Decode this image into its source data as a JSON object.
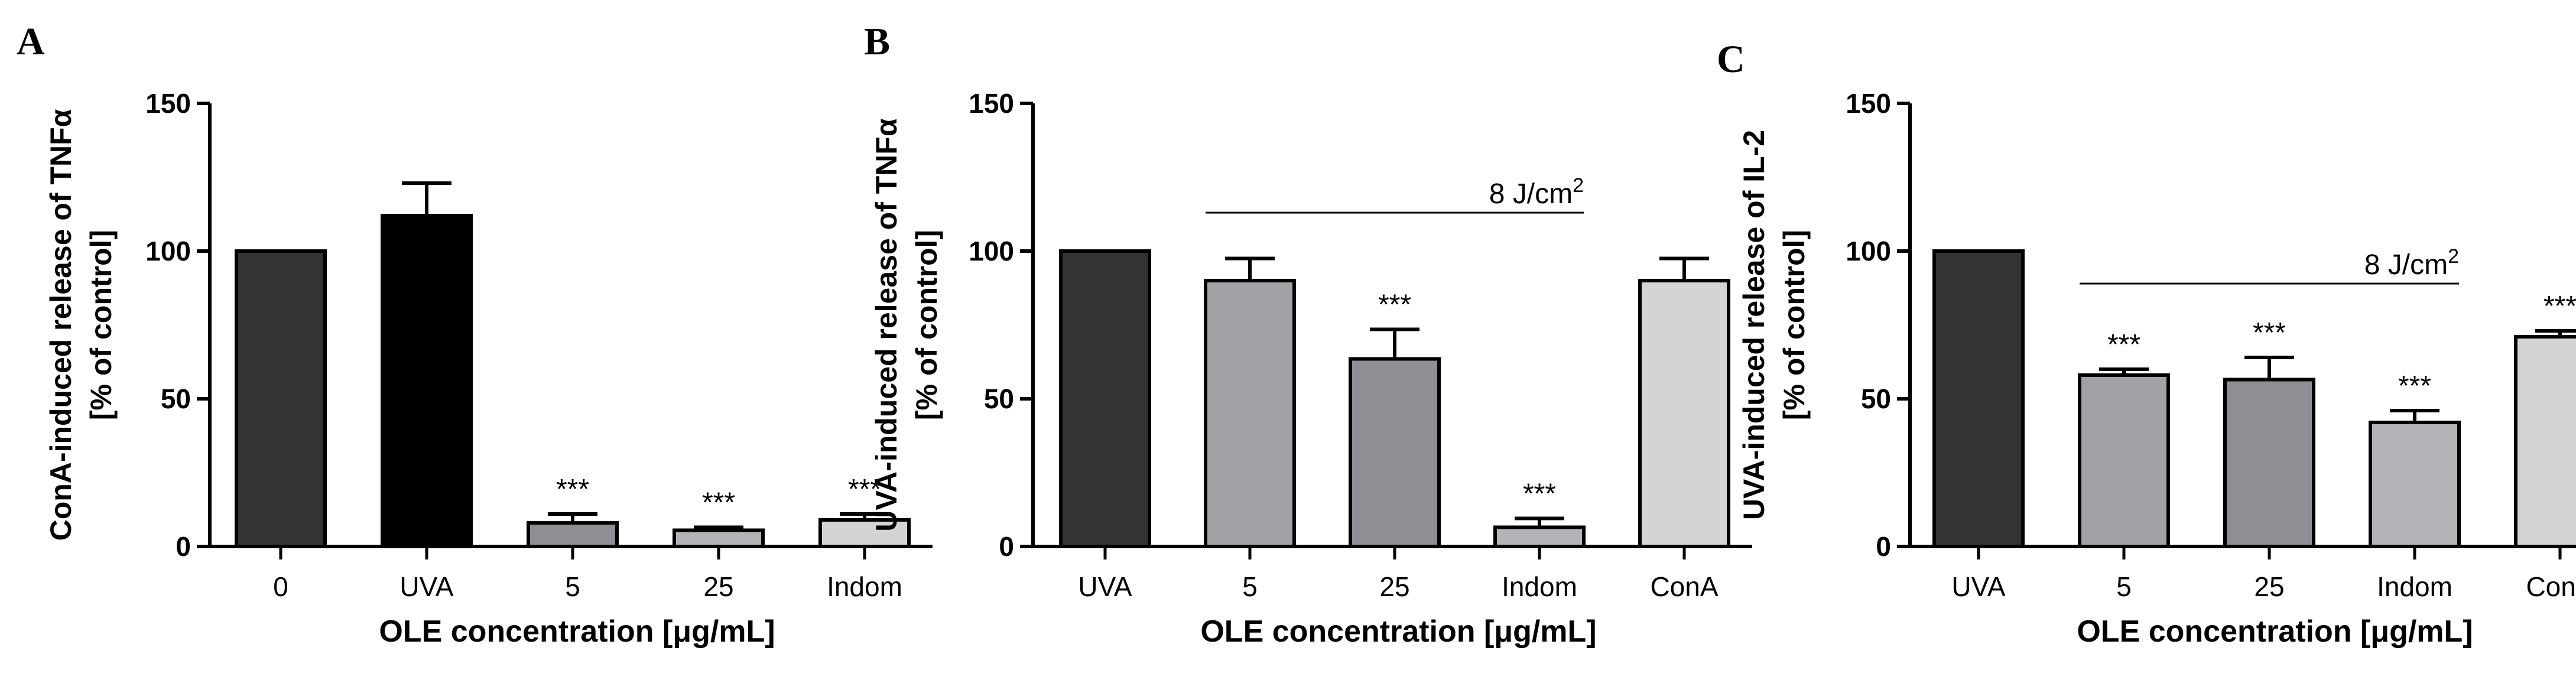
{
  "chart_data": [
    {
      "type": "bar",
      "panel": "A",
      "categories": [
        "0",
        "UVA",
        "5",
        "25",
        "Indom"
      ],
      "values": [
        100,
        112,
        8,
        5.5,
        9
      ],
      "errors": [
        0,
        11,
        3,
        1,
        2
      ],
      "colors": [
        "#333333",
        "#000000",
        "#8e8e94",
        "#b3b3b8",
        "#d4d4d4"
      ],
      "significance": [
        "",
        "",
        "***",
        "***",
        "***"
      ],
      "ylabel": [
        "ConA-induced release of TNFα",
        "[% of control]"
      ],
      "xlabel": "OLE concentration [μg/mL]",
      "ylim": [
        0,
        150
      ],
      "yticks": [
        0,
        50,
        100,
        150
      ],
      "ytick_labels": [
        "0",
        "50",
        "100",
        "150"
      ],
      "annotation": null
    },
    {
      "type": "bar",
      "panel": "B",
      "categories": [
        "UVA",
        "5",
        "25",
        "Indom",
        "ConA"
      ],
      "values": [
        100,
        90,
        63.5,
        6.5,
        90
      ],
      "errors": [
        0,
        7.5,
        10,
        3,
        7.5
      ],
      "colors": [
        "#333333",
        "#a1a1a6",
        "#8e8e94",
        "#b3b3b8",
        "#d4d4d4"
      ],
      "significance": [
        "",
        "",
        "***",
        "***",
        ""
      ],
      "ylabel": [
        "UVA-induced release of TNFα",
        "[% of control]"
      ],
      "xlabel": "OLE concentration [μg/mL]",
      "ylim": [
        0,
        150
      ],
      "yticks": [
        0,
        50,
        100,
        150
      ],
      "ytick_labels": [
        "0",
        "50",
        "100",
        "150"
      ],
      "annotation": {
        "text": "8 J/cm",
        "sup": "2",
        "span_start": 1,
        "span_end": 3,
        "y": 113
      }
    },
    {
      "type": "bar",
      "panel": "C",
      "categories": [
        "UVA",
        "5",
        "25",
        "Indom",
        "ConA"
      ],
      "values": [
        100,
        58,
        56.5,
        42,
        71
      ],
      "errors": [
        0,
        2,
        7.5,
        4,
        2
      ],
      "colors": [
        "#333333",
        "#a1a1a6",
        "#8e8e94",
        "#b3b3b8",
        "#d4d4d4"
      ],
      "significance": [
        "",
        "***",
        "***",
        "***",
        "***"
      ],
      "ylabel": [
        "UVA-induced release of IL-2",
        "[% of control]"
      ],
      "xlabel": "OLE concentration [μg/mL]",
      "ylim": [
        0,
        150
      ],
      "yticks": [
        0,
        50,
        100,
        150
      ],
      "ytick_labels": [
        "0",
        "50",
        "100",
        "150"
      ],
      "annotation": {
        "text": "8 J/cm",
        "sup": "2",
        "span_start": 1,
        "span_end": 3,
        "y": 89
      }
    }
  ]
}
